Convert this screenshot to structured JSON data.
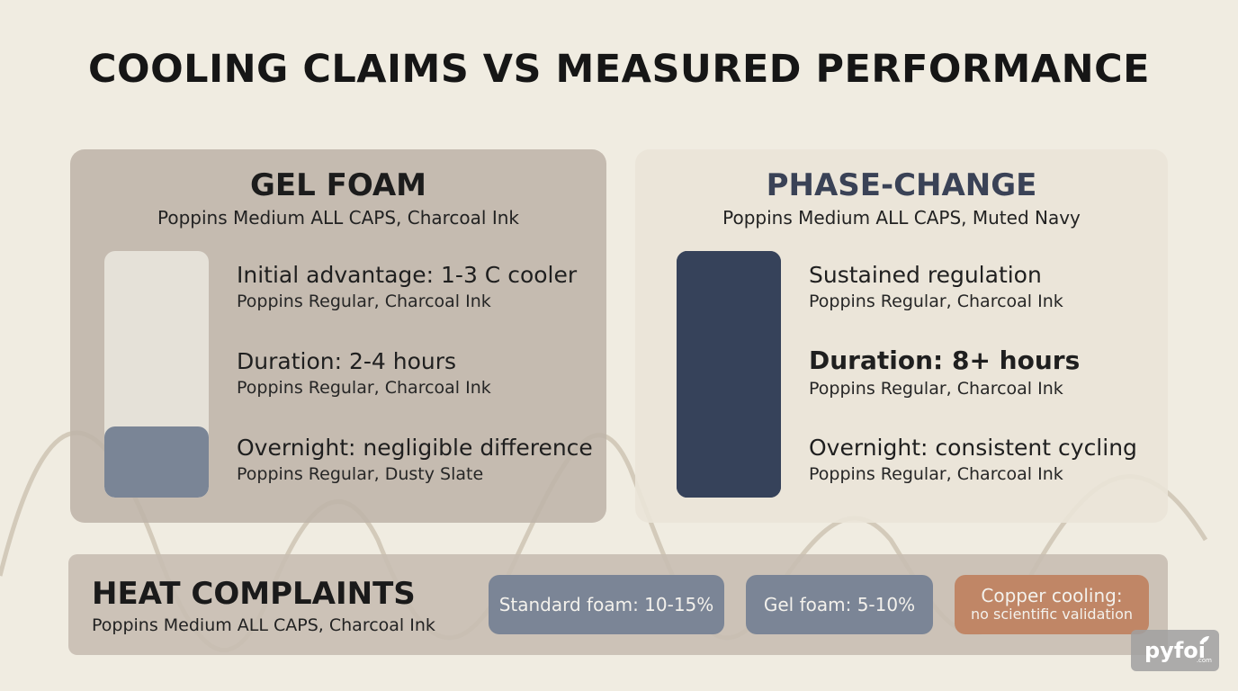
{
  "title": "COOLING CLAIMS VS MEASURED PERFORMANCE",
  "gel_panel": {
    "title": "GEL FOAM",
    "subtitle": "Poppins Medium ALL CAPS, Charcoal Ink",
    "gauge_level": 0.29,
    "items": [
      {
        "main": "Initial advantage: 1-3 C cooler",
        "note": "Poppins Regular, Charcoal Ink"
      },
      {
        "main": "Duration: 2-4 hours",
        "note": "Poppins Regular, Charcoal Ink"
      },
      {
        "main": "Overnight: negligible difference",
        "note": "Poppins Regular, Dusty Slate"
      }
    ]
  },
  "phase_panel": {
    "title": "PHASE-CHANGE",
    "subtitle": "Poppins Medium ALL CAPS, Muted Navy",
    "gauge_level": 1.0,
    "items": [
      {
        "main": "Sustained regulation",
        "note": "Poppins Regular, Charcoal Ink"
      },
      {
        "main": "Duration: 8+ hours",
        "note": "Poppins Regular, Charcoal Ink"
      },
      {
        "main": "Overnight: consistent cycling",
        "note": "Poppins Regular, Charcoal Ink"
      }
    ]
  },
  "heat_panel": {
    "title": "HEAT COMPLAINTS",
    "subtitle": "Poppins Medium ALL CAPS, Charcoal Ink",
    "pills": [
      {
        "label": "Standard foam: 10-15%"
      },
      {
        "label": "Gel foam: 5-10%"
      },
      {
        "label": "Copper cooling:",
        "note": "no scientific validation"
      }
    ]
  },
  "logo": {
    "text": "pyfoi",
    "suffix": ".com"
  },
  "colors": {
    "background": "#f0ece1",
    "gel_panel": "#beb4a8",
    "phase_panel": "#eae4d8",
    "muted_navy": "#36425a",
    "dusty_slate": "#7b8596",
    "copper": "#c08666"
  }
}
